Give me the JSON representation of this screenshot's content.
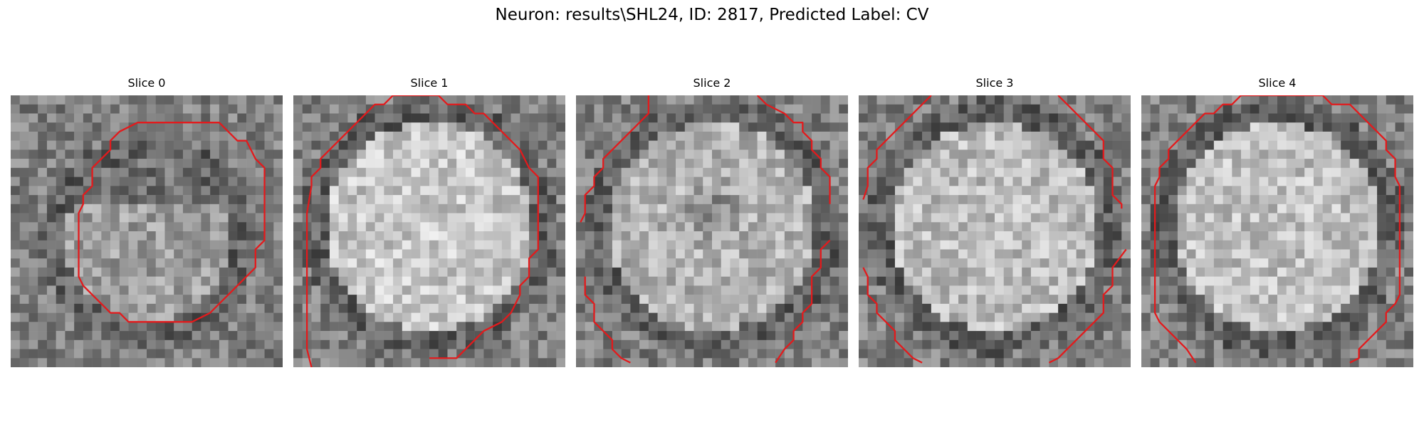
{
  "figure": {
    "title": "Neuron: results\\SHL24, ID: 2817, Predicted Label: CV",
    "contour_color": "#e31a1c",
    "panels": [
      {
        "title": "Slice 0",
        "center": "dark",
        "brightness": 0.62,
        "contour": "contour-0"
      },
      {
        "title": "Slice 1",
        "center": "bright",
        "brightness": 0.78,
        "contour": "contour-1"
      },
      {
        "title": "Slice 2",
        "center": "dark-spot",
        "brightness": 0.7,
        "contour": "contour-2"
      },
      {
        "title": "Slice 3",
        "center": "bright",
        "brightness": 0.74,
        "contour": "contour-3"
      },
      {
        "title": "Slice 4",
        "center": "bright",
        "brightness": 0.75,
        "contour": "contour-4"
      }
    ]
  }
}
